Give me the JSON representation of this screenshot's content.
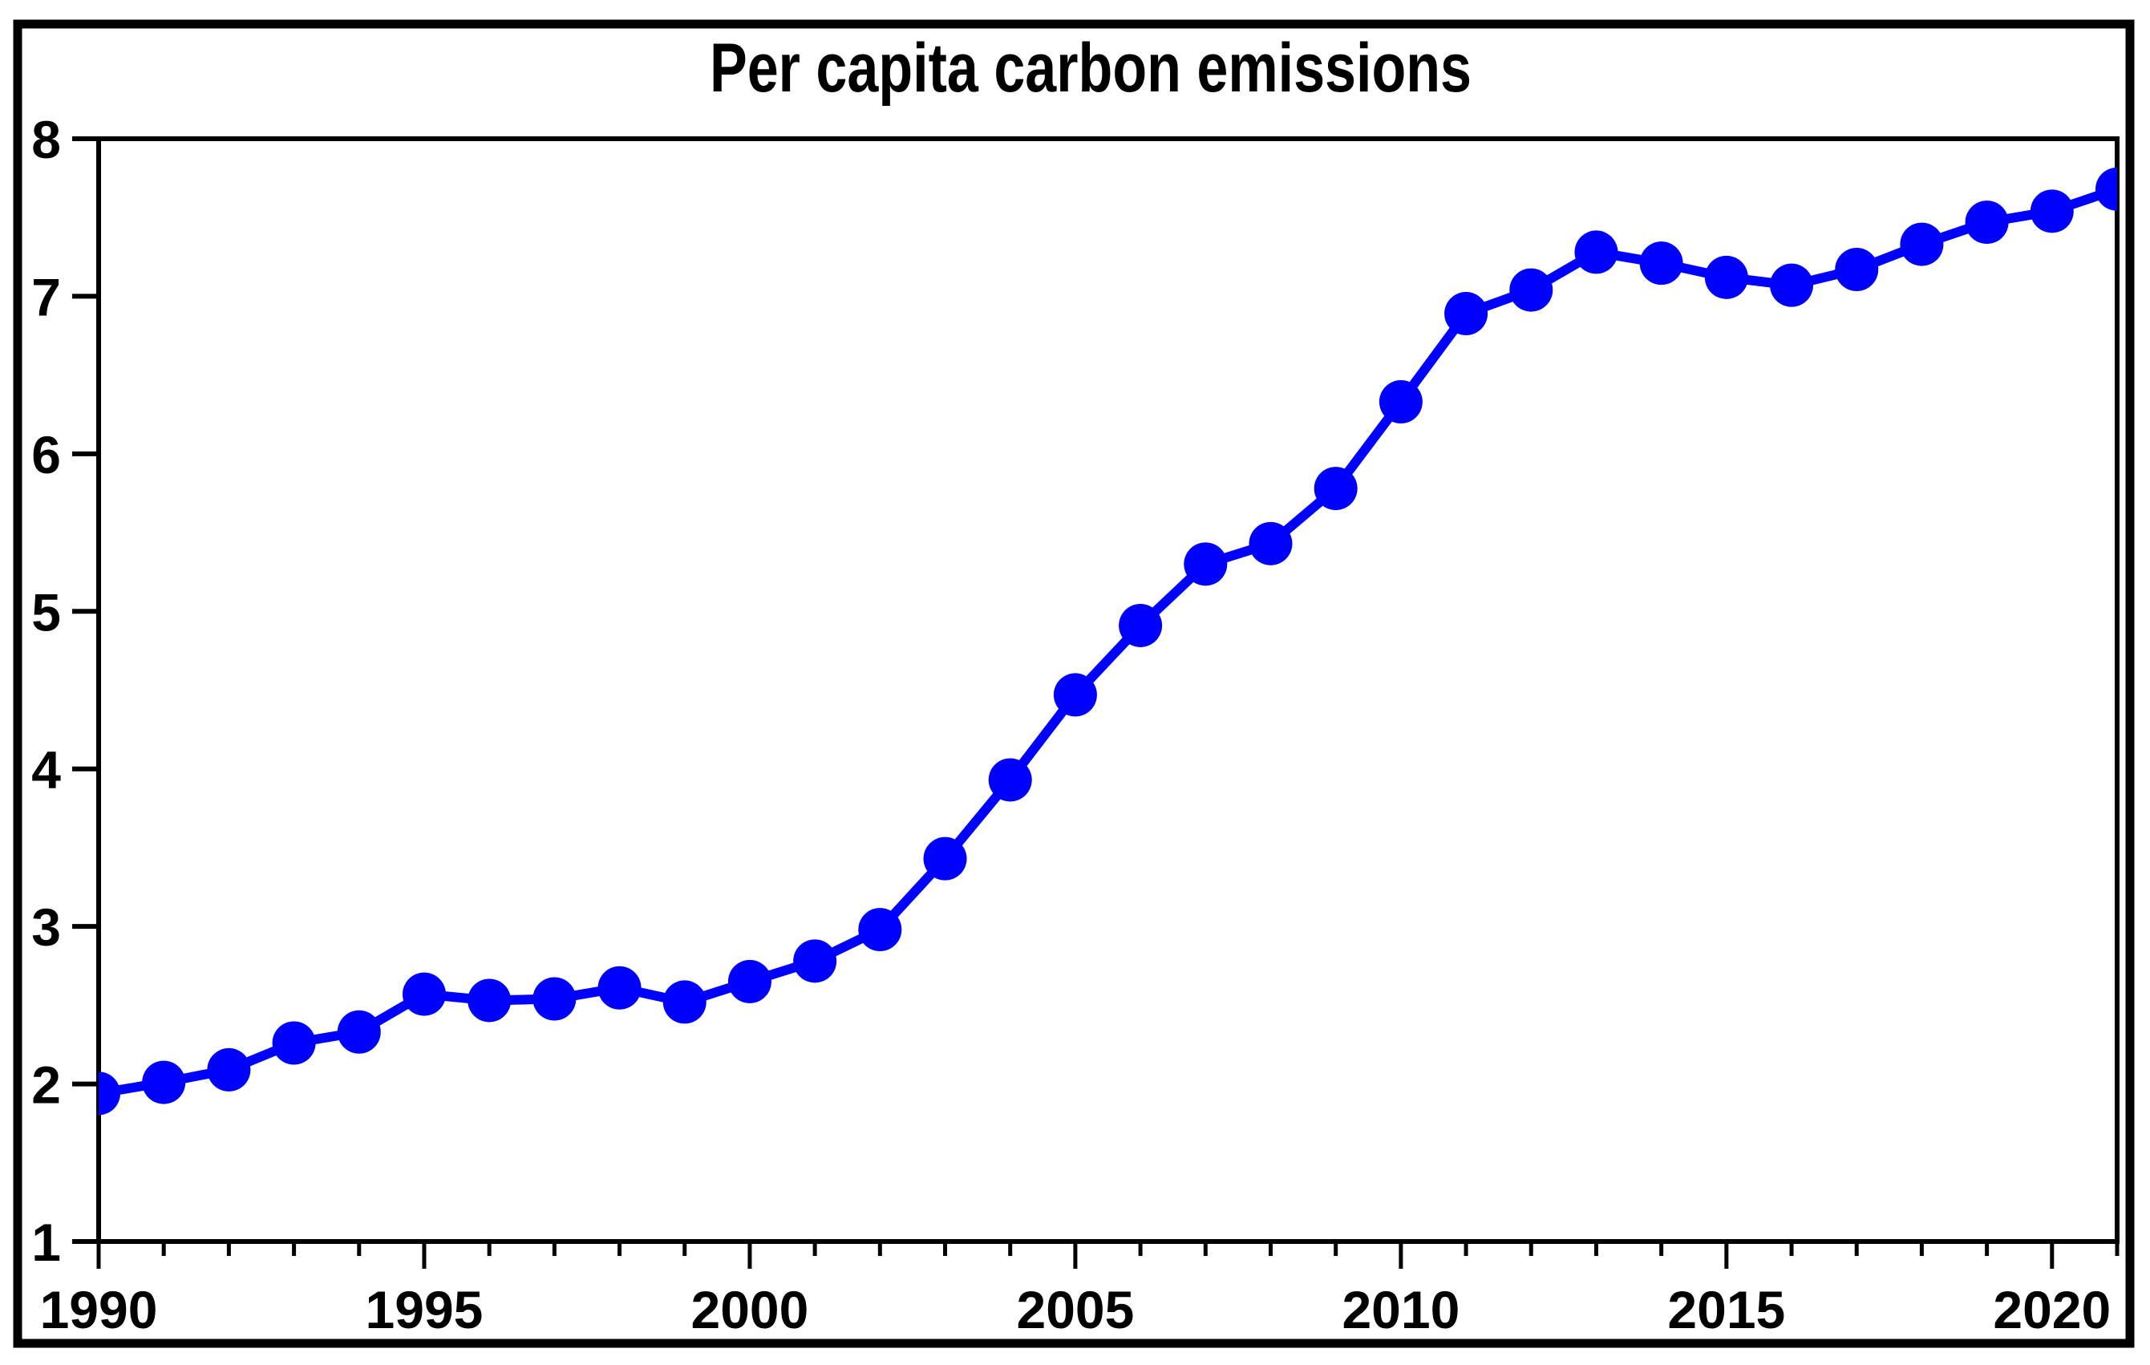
{
  "figure": {
    "background_color": "#ffffff",
    "border_color": "#000000",
    "text_color": "#000000"
  },
  "chart_data": {
    "type": "line",
    "title": "Per capita carbon emissions",
    "xlabel": "",
    "ylabel": "",
    "legend": "none",
    "grid": false,
    "line_color": "#0000FF",
    "marker": "circle",
    "xlim": [
      1990,
      2021
    ],
    "ylim": [
      1,
      8
    ],
    "x_major_ticks": [
      1990,
      1995,
      2000,
      2005,
      2010,
      2015,
      2020
    ],
    "y_ticks": [
      1,
      2,
      3,
      4,
      5,
      6,
      7,
      8
    ],
    "x": [
      1990,
      1991,
      1992,
      1993,
      1994,
      1995,
      1996,
      1997,
      1998,
      1999,
      2000,
      2001,
      2002,
      2003,
      2004,
      2005,
      2006,
      2007,
      2008,
      2009,
      2010,
      2011,
      2012,
      2013,
      2014,
      2015,
      2016,
      2017,
      2018,
      2019,
      2020,
      2021
    ],
    "values": [
      1.94,
      2.01,
      2.09,
      2.26,
      2.33,
      2.57,
      2.53,
      2.54,
      2.61,
      2.52,
      2.65,
      2.78,
      2.98,
      3.43,
      3.93,
      4.47,
      4.91,
      5.3,
      5.43,
      5.78,
      6.33,
      6.89,
      7.04,
      7.28,
      7.21,
      7.12,
      7.07,
      7.17,
      7.33,
      7.47,
      7.54,
      7.68
    ]
  }
}
